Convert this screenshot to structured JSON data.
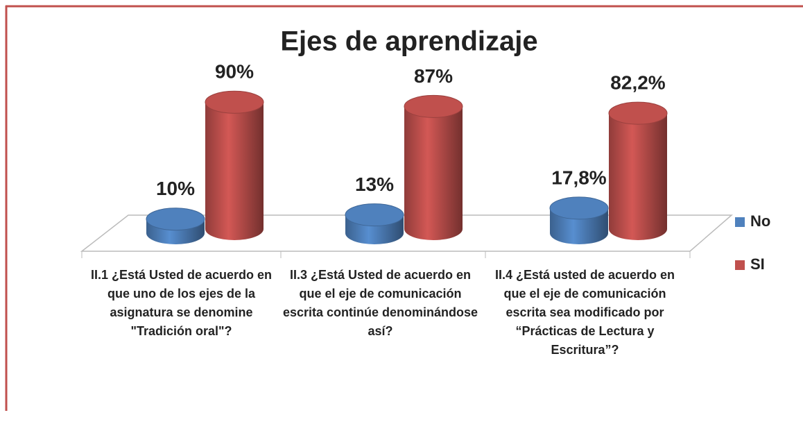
{
  "chart_data": {
    "type": "bar3d",
    "title": "Ejes de aprendizaje",
    "categories": [
      "II.1 ¿Está Usted de acuerdo en que uno de los ejes de la asignatura se denomine \"Tradición oral\"?",
      "II.3 ¿Está Usted de acuerdo en que el eje de comunicación escrita continúe denominándose así?",
      "II.4 ¿Está usted de acuerdo en que el eje de comunicación escrita sea modificado por “Prácticas de Lectura y Escritura”?"
    ],
    "series": [
      {
        "name": "No",
        "color": "#4f81bd",
        "values": [
          10,
          13,
          17.8
        ],
        "value_labels": [
          "10%",
          "13%",
          "17,8%"
        ]
      },
      {
        "name": "SI",
        "color": "#c0504d",
        "values": [
          90,
          87,
          82.2
        ],
        "value_labels": [
          "90%",
          "87%",
          "82,2%"
        ]
      }
    ],
    "legend": "right"
  }
}
